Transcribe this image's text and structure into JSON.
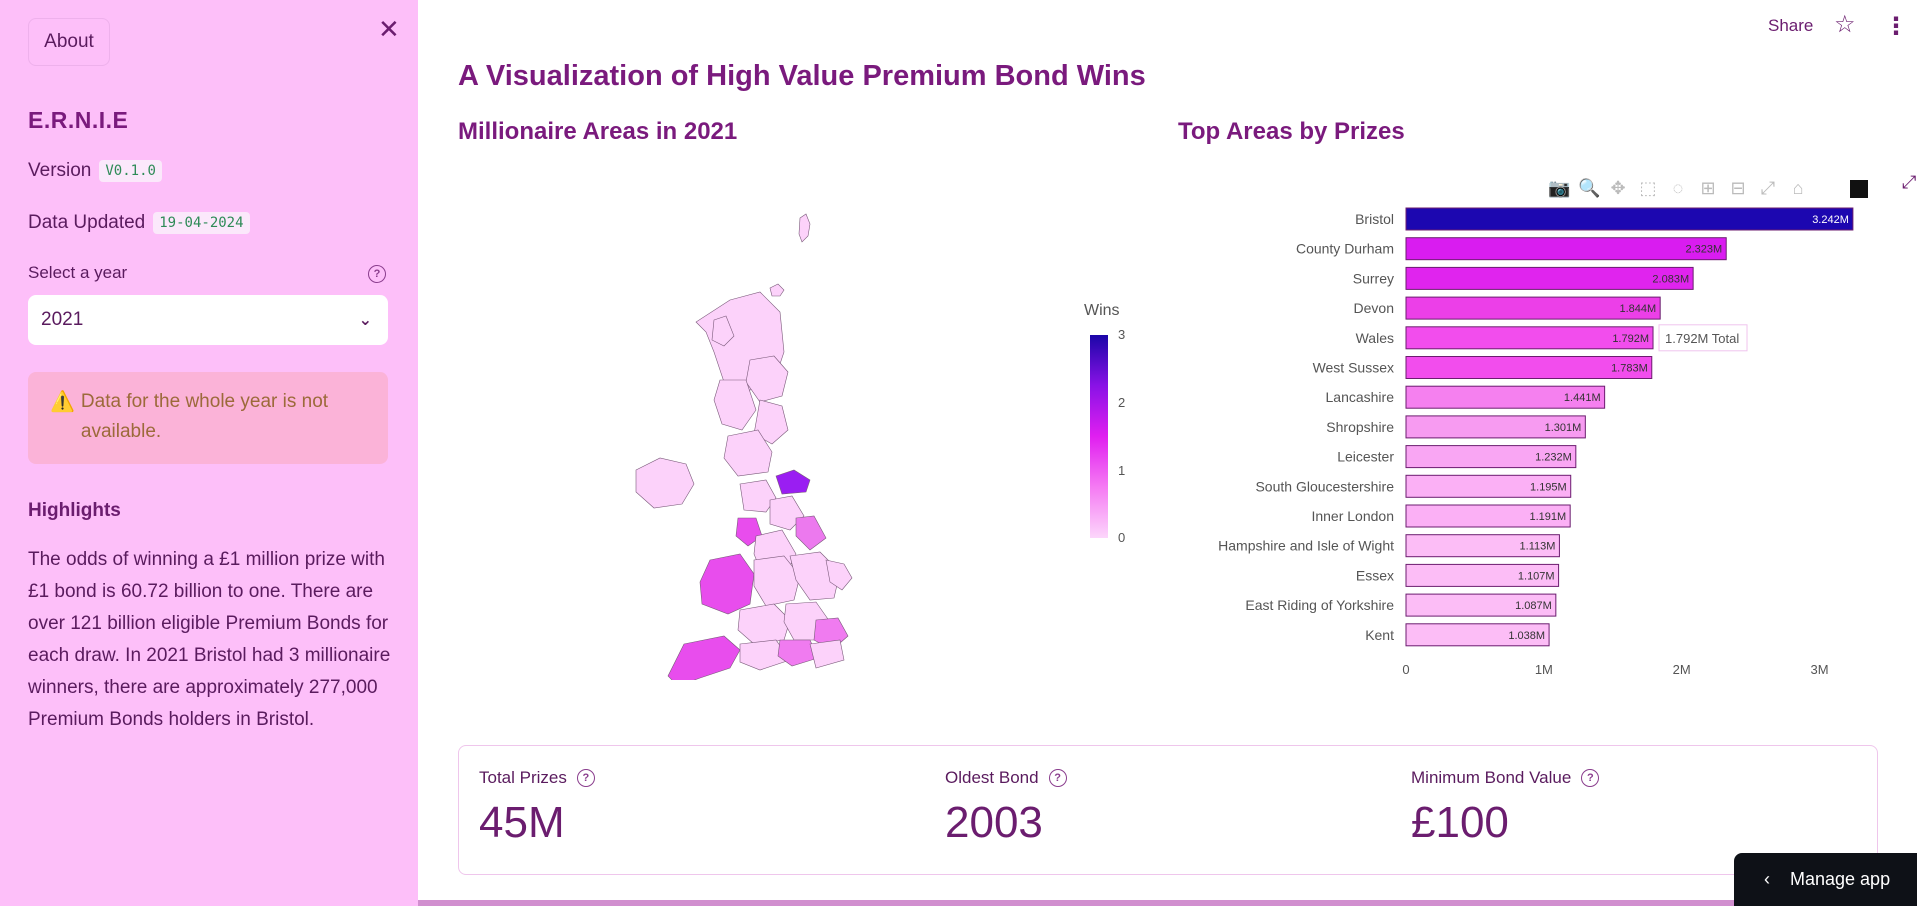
{
  "sidebar": {
    "about_label": "About",
    "close_icon": "close-icon",
    "app_name": "E.R.N.I.E",
    "version_label": "Version",
    "version_value": "V0.1.0",
    "updated_label": "Data Updated",
    "updated_value": "19-04-2024",
    "select_label": "Select a year",
    "select_value": "2021",
    "warning_icon": "⚠️",
    "warning_text": "Data for the whole year is not available.",
    "highlights_title": "Highlights",
    "highlights_text": "The odds of winning a £1 million prize with £1 bond is 60.72 billion to one. There are over 121 billion eligible Premium Bonds for each draw. In 2021 Bristol had 3 millionaire winners, there are approximately 277,000 Premium Bonds holders in Bristol."
  },
  "topbar": {
    "share_label": "Share"
  },
  "main": {
    "page_title": "A Visualization of High Value Premium Bond Wins",
    "map_title": "Millionaire Areas in 2021",
    "bar_title": "Top Areas by Prizes",
    "colorbar_title": "Wins",
    "colorbar_ticks": [
      "3",
      "2",
      "1",
      "0"
    ]
  },
  "chart_data": [
    {
      "type": "bar",
      "orientation": "horizontal",
      "categories": [
        "Bristol",
        "County Durham",
        "Surrey",
        "Devon",
        "Wales",
        "West Sussex",
        "Lancashire",
        "Shropshire",
        "Leicester",
        "South Gloucestershire",
        "Inner London",
        "Hampshire and Isle of Wight",
        "Essex",
        "East Riding of Yorkshire",
        "Kent"
      ],
      "values": [
        3.242,
        2.323,
        2.083,
        1.844,
        1.792,
        1.783,
        1.441,
        1.301,
        1.232,
        1.195,
        1.191,
        1.113,
        1.107,
        1.087,
        1.038
      ],
      "value_labels": [
        "3.242M",
        "2.323M",
        "2.083M",
        "1.844M",
        "1.792M",
        "1.783M",
        "1.441M",
        "1.301M",
        "1.232M",
        "1.195M",
        "1.191M",
        "1.113M",
        "1.107M",
        "1.087M",
        "1.038M"
      ],
      "x_ticks": [
        "0",
        "1M",
        "2M",
        "3M"
      ],
      "xlim": [
        0,
        3.25
      ],
      "hover_label": "1.792M Total",
      "hover_index": 4,
      "colors": [
        "#1c07b0",
        "#d91cf0",
        "#e024ee",
        "#ec3fe8",
        "#f24ded",
        "#f24ded",
        "#f580ef",
        "#f79bf1",
        "#f9a6f3",
        "#fbb0f5",
        "#fbb0f5",
        "#fcbdf6",
        "#fcbdf6",
        "#fcbdf6",
        "#fcbdf6"
      ]
    }
  ],
  "metrics": [
    {
      "label": "Total Prizes",
      "value": "45M"
    },
    {
      "label": "Oldest Bond",
      "value": "2003"
    },
    {
      "label": "Minimum Bond Value",
      "value": "£100"
    }
  ],
  "manage_app_label": "Manage app"
}
